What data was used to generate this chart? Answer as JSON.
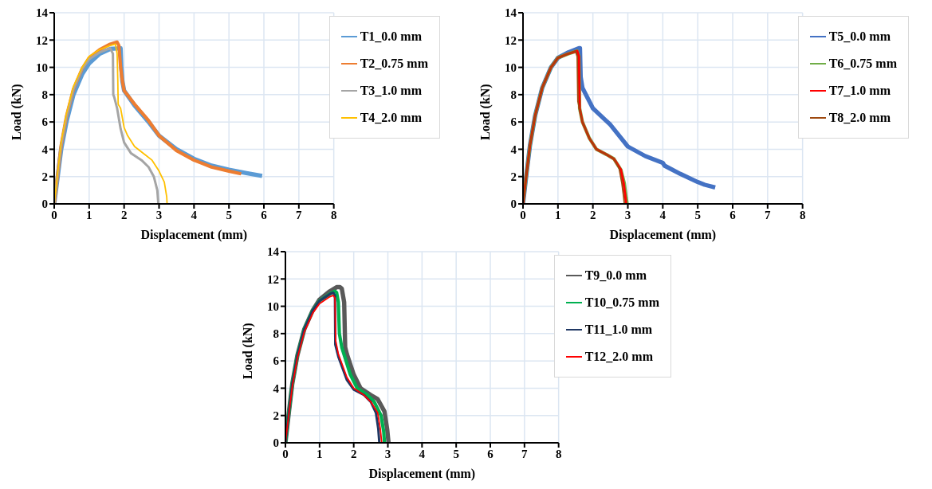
{
  "chart_data": [
    {
      "type": "line",
      "xlabel": "Displacement (mm)",
      "ylabel": "Load (kN)",
      "xlim": [
        0,
        8
      ],
      "xticks": [
        0,
        1,
        2,
        3,
        4,
        5,
        6,
        7,
        8
      ],
      "ylim": [
        0,
        14
      ],
      "yticks": [
        0,
        2,
        4,
        6,
        8,
        10,
        12,
        14
      ],
      "grid": true,
      "legend": "top right",
      "line_style": "solid",
      "series": [
        {
          "name": "T1_0.0 mm",
          "color": "#5b9bd5",
          "x": [
            0,
            0.1,
            0.2,
            0.35,
            0.55,
            0.8,
            1.0,
            1.3,
            1.6,
            1.9,
            1.92,
            1.95,
            2.0,
            2.3,
            2.7,
            3.0,
            3.5,
            4.0,
            4.5,
            5.0,
            5.5,
            5.95
          ],
          "values": [
            0,
            2,
            4,
            6,
            8,
            9.5,
            10.3,
            11,
            11.35,
            11.4,
            10,
            9,
            8.3,
            7.2,
            6,
            5,
            4,
            3.3,
            2.8,
            2.5,
            2.25,
            2.05
          ]
        },
        {
          "name": "T2_0.75 mm",
          "color": "#ed7d31",
          "x": [
            0,
            0.1,
            0.2,
            0.35,
            0.55,
            0.8,
            1.0,
            1.3,
            1.6,
            1.8,
            1.85,
            1.9,
            1.95,
            2.0,
            2.3,
            2.7,
            3.0,
            3.5,
            4.0,
            4.5,
            5.0,
            5.35
          ],
          "values": [
            0,
            2.2,
            4.3,
            6.4,
            8.4,
            9.9,
            10.7,
            11.3,
            11.7,
            11.85,
            11.6,
            10,
            9,
            8.3,
            7.3,
            6.1,
            5,
            3.9,
            3.2,
            2.7,
            2.4,
            2.2
          ]
        },
        {
          "name": "T3_1.0 mm",
          "color": "#a5a5a5",
          "x": [
            0,
            0.1,
            0.2,
            0.35,
            0.55,
            0.8,
            1.0,
            1.3,
            1.6,
            1.68,
            1.69,
            1.72,
            1.8,
            1.9,
            2.0,
            2.2,
            2.5,
            2.7,
            2.85,
            2.95,
            2.98
          ],
          "values": [
            0,
            2.2,
            4.3,
            6.4,
            8.4,
            9.9,
            10.6,
            11.1,
            11.4,
            11,
            8,
            7.8,
            7,
            5.5,
            4.5,
            3.7,
            3.2,
            2.7,
            2,
            1,
            0
          ]
        },
        {
          "name": "T4_2.0 mm",
          "color": "#ffc000",
          "x": [
            0,
            0.1,
            0.2,
            0.35,
            0.55,
            0.8,
            1.0,
            1.3,
            1.6,
            1.75,
            1.8,
            1.82,
            1.83,
            1.9,
            2.0,
            2.1,
            2.3,
            2.6,
            2.8,
            3.0,
            3.15,
            3.22,
            3.23
          ],
          "values": [
            0,
            2.3,
            4.5,
            6.6,
            8.6,
            10,
            10.8,
            11.3,
            11.6,
            11.7,
            11,
            9,
            7.3,
            7,
            5.6,
            5,
            4.2,
            3.6,
            3.2,
            2.4,
            1.6,
            0.5,
            0
          ]
        }
      ]
    },
    {
      "type": "line",
      "xlabel": "Displacement (mm)",
      "ylabel": "Load (kN)",
      "xlim": [
        0,
        8
      ],
      "xticks": [
        0,
        1,
        2,
        3,
        4,
        5,
        6,
        7,
        8
      ],
      "ylim": [
        0,
        14
      ],
      "yticks": [
        0,
        2,
        4,
        6,
        8,
        10,
        12,
        14
      ],
      "grid": true,
      "legend": "top right",
      "line_style": "solid",
      "series": [
        {
          "name": "T5_0.0 mm",
          "color": "#4472c4",
          "x": [
            0,
            0.1,
            0.2,
            0.35,
            0.55,
            0.8,
            1.0,
            1.3,
            1.6,
            1.63,
            1.65,
            1.7,
            2.0,
            2.5,
            3.0,
            3.5,
            4.0,
            4.05,
            4.5,
            5.0,
            5.2,
            5.5
          ],
          "values": [
            0,
            2.2,
            4.3,
            6.5,
            8.5,
            10,
            10.7,
            11.1,
            11.4,
            11.4,
            9.3,
            8.5,
            7,
            5.8,
            4.2,
            3.5,
            3,
            2.8,
            2.2,
            1.6,
            1.4,
            1.2
          ]
        },
        {
          "name": "T6_0.75 mm",
          "color": "#70ad47",
          "x": [
            0,
            0.1,
            0.2,
            0.35,
            0.55,
            0.8,
            1.0,
            1.3,
            1.55,
            1.6,
            1.62,
            1.7,
            1.9,
            2.1,
            2.4,
            2.6,
            2.8,
            2.9,
            2.95,
            2.98
          ],
          "values": [
            0,
            2.2,
            4.3,
            6.5,
            8.5,
            10,
            10.7,
            11,
            11.2,
            10.8,
            7,
            6,
            4.8,
            4,
            3.6,
            3.3,
            2.5,
            1.5,
            0.5,
            0
          ]
        },
        {
          "name": "T7_1.0 mm",
          "color": "#ff0000",
          "x": [
            0,
            0.1,
            0.2,
            0.35,
            0.55,
            0.8,
            1.0,
            1.3,
            1.55,
            1.6,
            1.62,
            1.7,
            1.9,
            2.1,
            2.4,
            2.6,
            2.8,
            2.88,
            2.93,
            2.95
          ],
          "values": [
            0,
            2.2,
            4.3,
            6.5,
            8.5,
            10,
            10.7,
            11,
            11.2,
            10.8,
            7,
            6,
            4.8,
            4,
            3.6,
            3.3,
            2.5,
            1.5,
            0.5,
            0
          ]
        },
        {
          "name": "T8_2.0 mm",
          "color": "#9e480e",
          "x": [
            0,
            0.1,
            0.2,
            0.35,
            0.55,
            0.8,
            1.0,
            1.3,
            1.5,
            1.55,
            1.57,
            1.7,
            1.9,
            2.1,
            2.4,
            2.6,
            2.75,
            2.83,
            2.88,
            2.9
          ],
          "values": [
            0,
            2.2,
            4.3,
            6.5,
            8.5,
            10,
            10.7,
            11,
            11.2,
            10.8,
            7.5,
            6,
            4.8,
            4,
            3.6,
            3.3,
            2.6,
            1.5,
            0.5,
            0
          ]
        }
      ]
    },
    {
      "type": "line",
      "xlabel": "Displacement (mm)",
      "ylabel": "Load (kN)",
      "xlim": [
        0,
        8
      ],
      "xticks": [
        0,
        1,
        2,
        3,
        4,
        5,
        6,
        7,
        8
      ],
      "ylim": [
        0,
        14
      ],
      "yticks": [
        0,
        2,
        4,
        6,
        8,
        10,
        12,
        14
      ],
      "grid": true,
      "legend": "top right",
      "line_style": "solid",
      "series": [
        {
          "name": "T9_0.0 mm",
          "color": "#595959",
          "x": [
            0,
            0.1,
            0.2,
            0.35,
            0.55,
            0.8,
            1.0,
            1.3,
            1.5,
            1.6,
            1.65,
            1.72,
            1.75,
            1.8,
            2.0,
            2.2,
            2.5,
            2.7,
            2.9,
            2.98,
            3.02
          ],
          "values": [
            0,
            2.2,
            4.3,
            6.4,
            8.3,
            9.7,
            10.5,
            11.1,
            11.4,
            11.4,
            11.3,
            10.3,
            7,
            6.5,
            5,
            4,
            3.5,
            3.2,
            2.3,
            1,
            0
          ]
        },
        {
          "name": "T10_0.75 mm",
          "color": "#00b050",
          "x": [
            0,
            0.1,
            0.2,
            0.35,
            0.55,
            0.8,
            1.0,
            1.3,
            1.45,
            1.5,
            1.55,
            1.58,
            1.65,
            1.9,
            2.1,
            2.4,
            2.6,
            2.8,
            2.88,
            2.9
          ],
          "values": [
            0,
            2.2,
            4.3,
            6.4,
            8.3,
            9.7,
            10.4,
            10.9,
            11.1,
            11,
            10.3,
            8,
            7,
            5,
            4,
            3.5,
            3,
            2,
            0.8,
            0
          ]
        },
        {
          "name": "T11_1.0 mm",
          "color": "#203864",
          "x": [
            0,
            0.1,
            0.2,
            0.35,
            0.55,
            0.8,
            1.0,
            1.3,
            1.4,
            1.45,
            1.46,
            1.55,
            1.8,
            2.0,
            2.3,
            2.5,
            2.65,
            2.72,
            2.75
          ],
          "values": [
            0,
            2.2,
            4.3,
            6.4,
            8.3,
            9.7,
            10.4,
            10.9,
            11,
            10.8,
            7.2,
            6.3,
            4.6,
            3.9,
            3.5,
            3,
            2.2,
            1,
            0
          ]
        },
        {
          "name": "T12_2.0 mm",
          "color": "#ff0000",
          "x": [
            0,
            0.1,
            0.2,
            0.35,
            0.55,
            0.8,
            1.0,
            1.3,
            1.4,
            1.45,
            1.47,
            1.55,
            1.8,
            2.0,
            2.3,
            2.5,
            2.7,
            2.78,
            2.82
          ],
          "values": [
            0,
            2.1,
            4.1,
            6.2,
            8.1,
            9.5,
            10.2,
            10.7,
            10.8,
            10.6,
            7.5,
            6.5,
            4.8,
            4,
            3.5,
            3,
            2.2,
            1,
            0
          ]
        }
      ]
    }
  ]
}
